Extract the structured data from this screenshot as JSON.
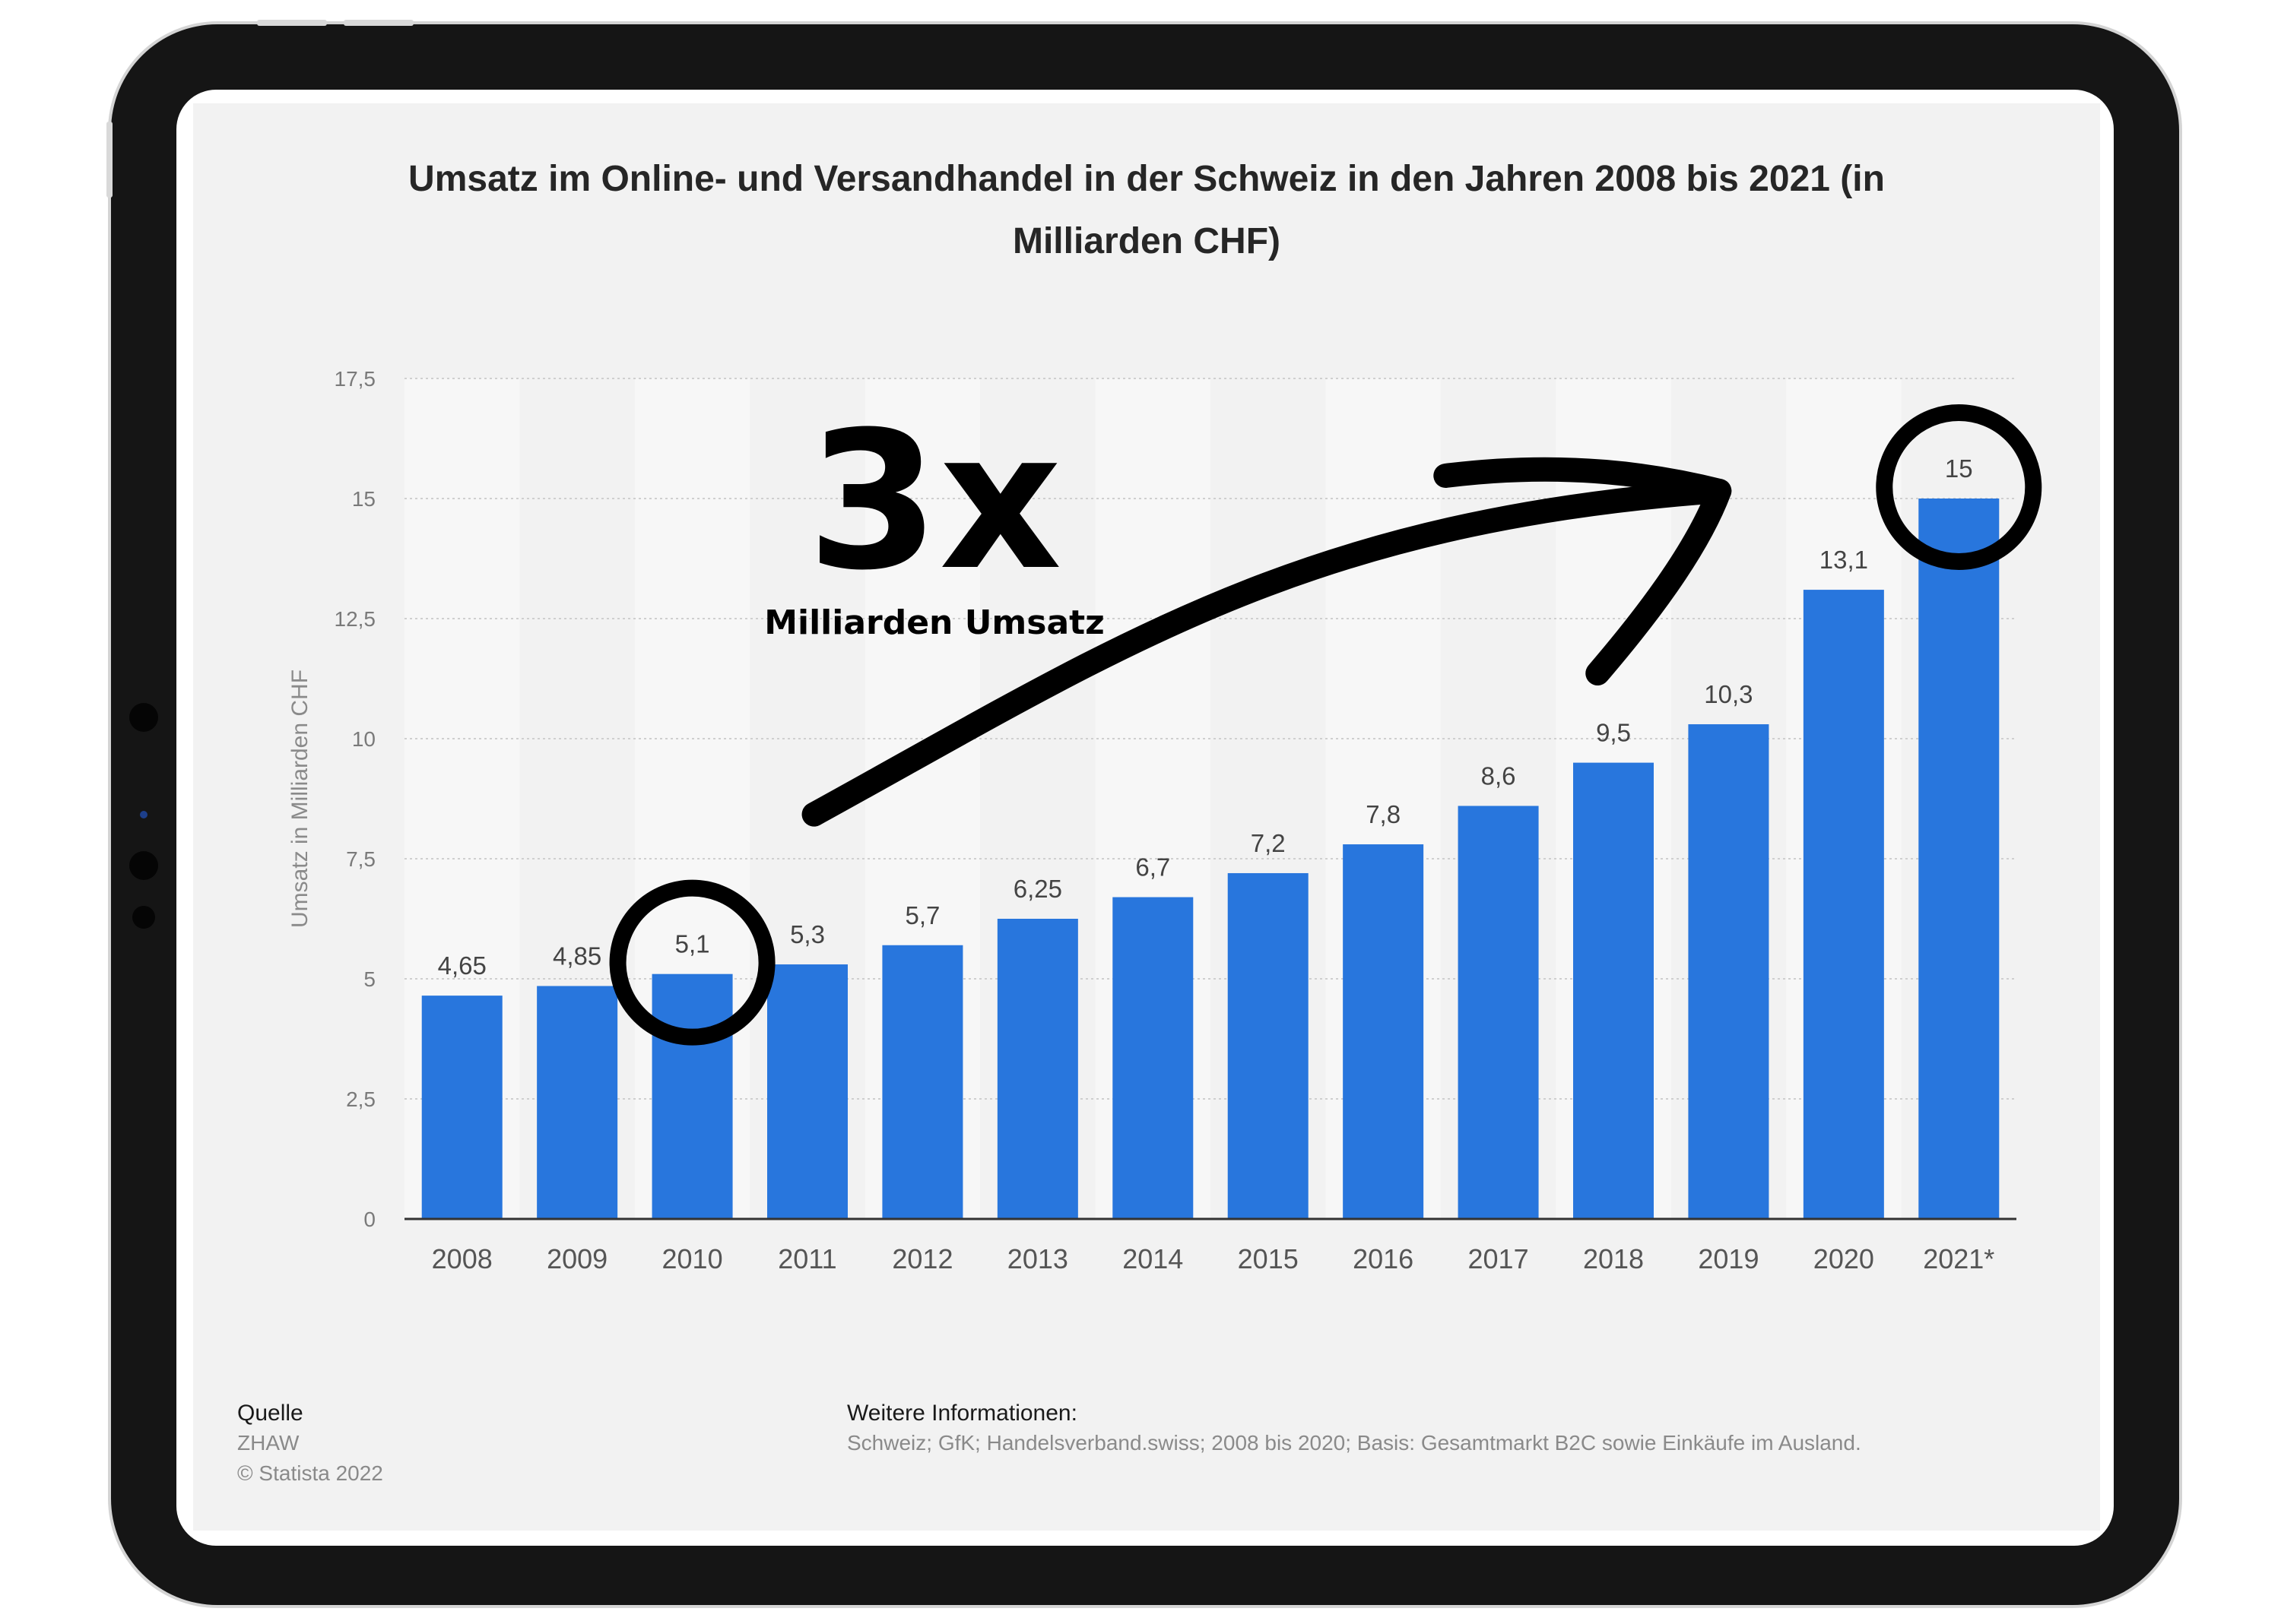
{
  "chart_data": {
    "type": "bar",
    "title_lines": [
      "Umsatz im Online- und Versandhandel in der Schweiz in den Jahren 2008 bis 2021 (in",
      "Milliarden CHF)"
    ],
    "ylabel": "Umsatz in Milliarden CHF",
    "xlabel": "",
    "ylim": [
      0,
      17.5
    ],
    "yticks": [
      0,
      2.5,
      5,
      7.5,
      10,
      12.5,
      15,
      17.5
    ],
    "ytick_labels": [
      "0",
      "2,5",
      "5",
      "7,5",
      "10",
      "12,5",
      "15",
      "17,5"
    ],
    "categories": [
      "2008",
      "2009",
      "2010",
      "2011",
      "2012",
      "2013",
      "2014",
      "2015",
      "2016",
      "2017",
      "2018",
      "2019",
      "2020",
      "2021*"
    ],
    "values": [
      4.65,
      4.85,
      5.1,
      5.3,
      5.7,
      6.25,
      6.7,
      7.2,
      7.8,
      8.6,
      9.5,
      10.3,
      13.1,
      15
    ],
    "value_labels": [
      "4,65",
      "4,85",
      "5,1",
      "5,3",
      "5,7",
      "6,25",
      "6,7",
      "7,2",
      "7,8",
      "8,6",
      "9,5",
      "10,3",
      "13,1",
      "15"
    ],
    "bar_color": "#2876dd",
    "grid": true,
    "legend": false,
    "highlighted_categories": [
      "2010",
      "2021*"
    ]
  },
  "annotation": {
    "big_text": "3x",
    "sub_text": "Milliarden Umsatz",
    "arrow_from_category": "2010",
    "arrow_to_category": "2021*"
  },
  "source": {
    "heading": "Quelle",
    "lines": [
      "ZHAW",
      "© Statista 2022"
    ]
  },
  "more_info": {
    "heading": "Weitere Informationen:",
    "text": "Schweiz; GfK; Handelsverband.swiss; 2008 bis 2020; Basis: Gesamtmarkt B2C sowie Einkäufe im Ausland."
  },
  "colors": {
    "bar": "#2876dd",
    "frame": "#151515",
    "background": "#f2f2f2"
  }
}
